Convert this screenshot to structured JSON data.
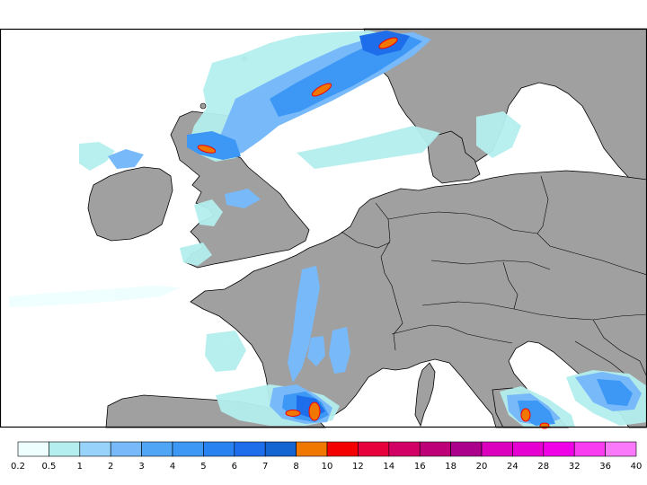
{
  "map": {
    "ocean_color": "#ffffff",
    "land_color": "#a0a0a0",
    "border_color": "#000000"
  },
  "legend": {
    "colors": [
      "#eefefe",
      "#b4eeee",
      "#96d2fa",
      "#78b9fa",
      "#50a5f5",
      "#3c97f5",
      "#2882f0",
      "#1e6eeb",
      "#1464d2",
      "#f07800",
      "#f50000",
      "#e6003c",
      "#d20064",
      "#be0078",
      "#aa008c",
      "#dc00be",
      "#e600d2",
      "#f000e6",
      "#fa3cf0",
      "#fa78fa"
    ],
    "labels": [
      "0.2",
      "0.5",
      "1",
      "2",
      "3",
      "4",
      "5",
      "6",
      "7",
      "8",
      "10",
      "12",
      "14",
      "16",
      "18",
      "20",
      "24",
      "28",
      "32",
      "36",
      "40"
    ]
  }
}
